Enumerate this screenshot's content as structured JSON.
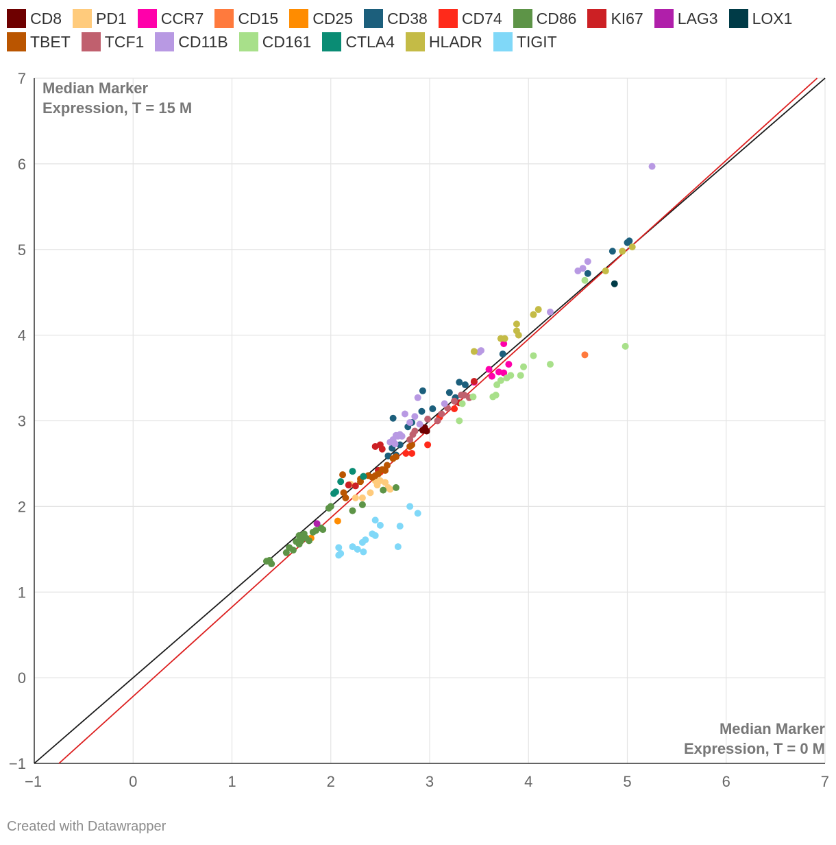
{
  "chart_data": {
    "type": "scatter",
    "xlim": [
      -1,
      7
    ],
    "ylim": [
      -1,
      7
    ],
    "xticks": [
      "−1",
      "0",
      "1",
      "2",
      "3",
      "4",
      "5",
      "6",
      "7"
    ],
    "yticks": [
      "−1",
      "0",
      "1",
      "2",
      "3",
      "4",
      "5",
      "6",
      "7"
    ],
    "annotation_top_left": [
      "Median Marker",
      "Expression, T = 15 M"
    ],
    "annotation_bottom_right": [
      "Median Marker",
      "Expression, T = 0 M"
    ],
    "reference_lines": [
      {
        "name": "identity",
        "color": "#1a1a1a",
        "points": [
          [
            -1,
            -1
          ],
          [
            7,
            7
          ]
        ]
      },
      {
        "name": "fit",
        "color": "#dc1e1e",
        "points": [
          [
            -0.75,
            -1
          ],
          [
            6.92,
            7
          ]
        ]
      }
    ],
    "series": [
      {
        "name": "CD8",
        "color": "#6e0000",
        "points": [
          [
            2.95,
            2.92
          ],
          [
            2.93,
            2.89
          ],
          [
            2.97,
            2.88
          ]
        ]
      },
      {
        "name": "PD1",
        "color": "#ffcb7c",
        "points": [
          [
            2.25,
            2.1
          ],
          [
            2.32,
            2.1
          ],
          [
            2.4,
            2.16
          ],
          [
            2.47,
            2.25
          ],
          [
            2.5,
            2.3
          ],
          [
            2.58,
            2.22
          ],
          [
            2.55,
            2.28
          ],
          [
            2.6,
            2.2
          ],
          [
            2.45,
            2.3
          ],
          [
            2.2,
            2.26
          ]
        ]
      },
      {
        "name": "CCR7",
        "color": "#ff00aa",
        "points": [
          [
            3.6,
            3.6
          ],
          [
            3.63,
            3.52
          ],
          [
            3.7,
            3.57
          ],
          [
            3.75,
            3.56
          ],
          [
            3.8,
            3.66
          ],
          [
            3.75,
            3.9
          ],
          [
            3.45,
            3.45
          ]
        ]
      },
      {
        "name": "CD15",
        "color": "#ff7a3d",
        "points": [
          [
            4.57,
            3.77
          ]
        ]
      },
      {
        "name": "CD25",
        "color": "#ff8c00",
        "points": [
          [
            2.07,
            1.83
          ],
          [
            1.8,
            1.63
          ]
        ]
      },
      {
        "name": "CD38",
        "color": "#1c5f7c",
        "points": [
          [
            2.63,
            3.03
          ],
          [
            2.93,
            3.35
          ],
          [
            3.2,
            3.33
          ],
          [
            3.3,
            3.45
          ],
          [
            3.36,
            3.42
          ],
          [
            3.03,
            3.14
          ],
          [
            2.92,
            3.11
          ],
          [
            2.82,
            2.98
          ],
          [
            2.78,
            2.93
          ],
          [
            2.7,
            2.72
          ],
          [
            2.62,
            2.68
          ],
          [
            2.58,
            2.59
          ],
          [
            2.66,
            2.6
          ],
          [
            3.74,
            3.78
          ],
          [
            4.85,
            4.98
          ],
          [
            5.0,
            5.08
          ],
          [
            5.02,
            5.1
          ],
          [
            4.6,
            4.72
          ],
          [
            3.26,
            3.27
          ]
        ]
      },
      {
        "name": "CD74",
        "color": "#ff2a1a",
        "points": [
          [
            2.82,
            2.62
          ],
          [
            2.76,
            2.62
          ],
          [
            2.98,
            2.72
          ],
          [
            3.25,
            3.14
          ],
          [
            3.1,
            3.04
          ],
          [
            2.5,
            2.4
          ]
        ]
      },
      {
        "name": "CD86",
        "color": "#5d9447",
        "points": [
          [
            1.35,
            1.36
          ],
          [
            1.38,
            1.37
          ],
          [
            1.4,
            1.33
          ],
          [
            1.55,
            1.46
          ],
          [
            1.58,
            1.52
          ],
          [
            1.62,
            1.49
          ],
          [
            1.68,
            1.56
          ],
          [
            1.7,
            1.6
          ],
          [
            1.72,
            1.65
          ],
          [
            1.75,
            1.63
          ],
          [
            1.68,
            1.66
          ],
          [
            1.73,
            1.68
          ],
          [
            1.82,
            1.7
          ],
          [
            1.85,
            1.72
          ],
          [
            1.9,
            1.75
          ],
          [
            1.78,
            1.6
          ],
          [
            1.65,
            1.59
          ],
          [
            1.98,
            1.98
          ],
          [
            2.0,
            2.0
          ],
          [
            2.22,
            1.95
          ],
          [
            2.32,
            2.02
          ],
          [
            2.53,
            2.19
          ],
          [
            2.66,
            2.22
          ],
          [
            1.92,
            1.73
          ]
        ]
      },
      {
        "name": "KI67",
        "color": "#cc2024",
        "points": [
          [
            2.45,
            2.7
          ],
          [
            2.5,
            2.72
          ],
          [
            2.52,
            2.67
          ],
          [
            2.48,
            2.42
          ],
          [
            2.18,
            2.25
          ],
          [
            2.25,
            2.24
          ],
          [
            3.3,
            3.21
          ],
          [
            3.45,
            3.46
          ]
        ]
      },
      {
        "name": "LAG3",
        "color": "#b01faa",
        "points": [
          [
            1.86,
            1.8
          ]
        ]
      },
      {
        "name": "LOX1",
        "color": "#003b47",
        "points": [
          [
            4.87,
            4.6
          ]
        ]
      },
      {
        "name": "TBET",
        "color": "#ba5500",
        "points": [
          [
            2.12,
            2.37
          ],
          [
            2.13,
            2.16
          ],
          [
            2.15,
            2.1
          ],
          [
            2.3,
            2.32
          ],
          [
            2.33,
            2.35
          ],
          [
            2.38,
            2.36
          ],
          [
            2.42,
            2.34
          ],
          [
            2.48,
            2.38
          ],
          [
            2.52,
            2.43
          ],
          [
            2.55,
            2.42
          ],
          [
            2.57,
            2.48
          ],
          [
            2.63,
            2.56
          ],
          [
            2.66,
            2.58
          ],
          [
            2.8,
            2.7
          ],
          [
            2.82,
            2.72
          ],
          [
            2.45,
            2.36
          ],
          [
            2.3,
            2.29
          ]
        ]
      },
      {
        "name": "TCF1",
        "color": "#c0606e",
        "points": [
          [
            2.8,
            2.78
          ],
          [
            2.83,
            2.84
          ],
          [
            2.85,
            2.88
          ],
          [
            2.98,
            3.02
          ],
          [
            3.08,
            3.0
          ],
          [
            3.18,
            3.15
          ],
          [
            3.25,
            3.23
          ],
          [
            3.32,
            3.3
          ],
          [
            3.35,
            3.3
          ],
          [
            3.4,
            3.27
          ],
          [
            3.12,
            3.08
          ]
        ]
      },
      {
        "name": "CD11B",
        "color": "#b899e3",
        "points": [
          [
            2.6,
            2.75
          ],
          [
            2.63,
            2.78
          ],
          [
            2.66,
            2.83
          ],
          [
            2.68,
            2.82
          ],
          [
            2.7,
            2.84
          ],
          [
            2.72,
            2.82
          ],
          [
            2.65,
            2.73
          ],
          [
            2.63,
            2.77
          ],
          [
            2.75,
            3.08
          ],
          [
            2.85,
            3.05
          ],
          [
            2.88,
            3.27
          ],
          [
            3.15,
            3.2
          ],
          [
            3.5,
            3.8
          ],
          [
            3.52,
            3.82
          ],
          [
            4.22,
            4.27
          ],
          [
            4.5,
            4.75
          ],
          [
            4.55,
            4.78
          ],
          [
            4.6,
            4.86
          ],
          [
            5.25,
            5.97
          ],
          [
            2.8,
            2.98
          ],
          [
            2.9,
            2.96
          ]
        ]
      },
      {
        "name": "CD161",
        "color": "#a8e08a",
        "points": [
          [
            3.3,
            3.0
          ],
          [
            3.33,
            3.2
          ],
          [
            3.44,
            3.28
          ],
          [
            3.64,
            3.28
          ],
          [
            3.67,
            3.3
          ],
          [
            3.68,
            3.42
          ],
          [
            3.72,
            3.47
          ],
          [
            3.78,
            3.5
          ],
          [
            3.82,
            3.53
          ],
          [
            3.92,
            3.53
          ],
          [
            3.95,
            3.63
          ],
          [
            4.05,
            3.76
          ],
          [
            4.22,
            3.66
          ],
          [
            4.57,
            4.64
          ],
          [
            4.98,
            3.87
          ]
        ]
      },
      {
        "name": "CTLA4",
        "color": "#0a8c74",
        "points": [
          [
            2.03,
            2.15
          ],
          [
            2.05,
            2.17
          ],
          [
            2.1,
            2.29
          ],
          [
            2.22,
            2.41
          ],
          [
            2.33,
            2.35
          ]
        ]
      },
      {
        "name": "HLADR",
        "color": "#c4bb46",
        "points": [
          [
            3.45,
            3.81
          ],
          [
            3.72,
            3.96
          ],
          [
            3.76,
            3.96
          ],
          [
            3.88,
            4.05
          ],
          [
            3.9,
            4.0
          ],
          [
            3.88,
            4.13
          ],
          [
            4.05,
            4.24
          ],
          [
            4.1,
            4.3
          ],
          [
            4.78,
            4.75
          ],
          [
            4.95,
            4.98
          ],
          [
            5.05,
            5.03
          ]
        ]
      },
      {
        "name": "TIGIT",
        "color": "#80d8f8",
        "points": [
          [
            2.08,
            1.52
          ],
          [
            2.08,
            1.43
          ],
          [
            2.1,
            1.45
          ],
          [
            2.22,
            1.53
          ],
          [
            2.27,
            1.5
          ],
          [
            2.33,
            1.47
          ],
          [
            2.32,
            1.58
          ],
          [
            2.35,
            1.61
          ],
          [
            2.42,
            1.68
          ],
          [
            2.45,
            1.66
          ],
          [
            2.45,
            1.84
          ],
          [
            2.5,
            1.78
          ],
          [
            2.68,
            1.53
          ],
          [
            2.7,
            1.77
          ],
          [
            2.8,
            2.0
          ],
          [
            2.88,
            1.92
          ]
        ]
      }
    ]
  },
  "footer": "Created with Datawrapper"
}
